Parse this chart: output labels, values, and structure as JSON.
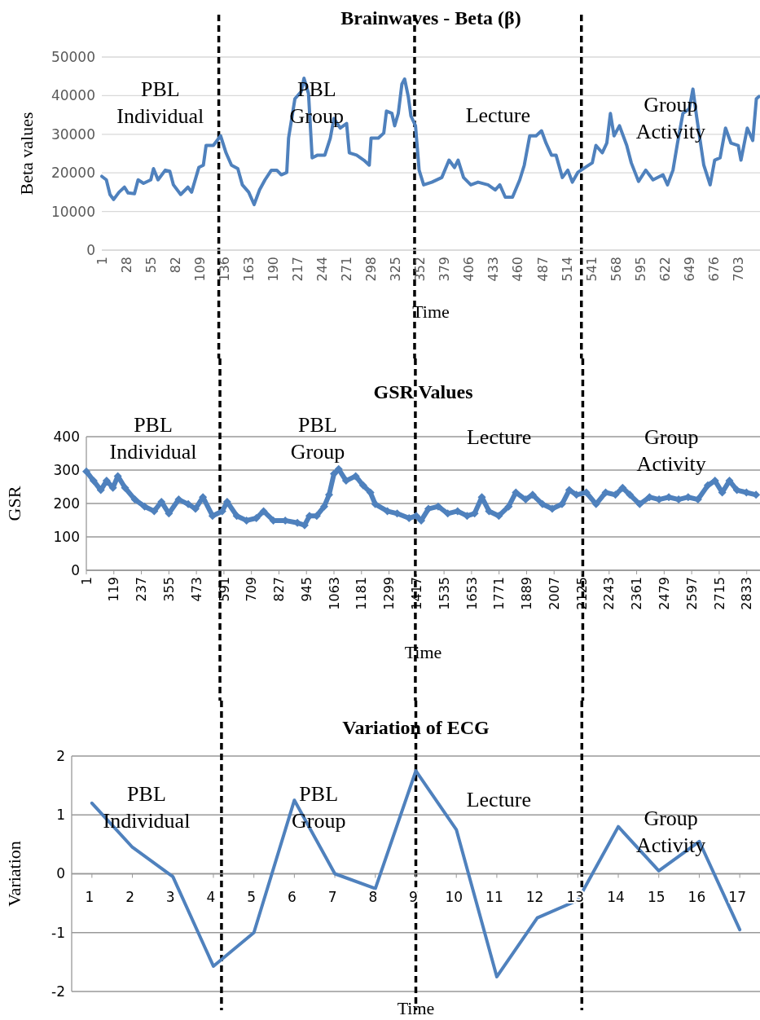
{
  "chart_data": [
    {
      "type": "line",
      "title": "Brainwaves - Beta (β)",
      "xlabel": "Time",
      "ylabel": "Beta values",
      "x": [
        1,
        6,
        10,
        14,
        20,
        26,
        30,
        37,
        41,
        47,
        55,
        58,
        63,
        71,
        76,
        80,
        88,
        96,
        100,
        108,
        113,
        116,
        124,
        132,
        138,
        144,
        151,
        156,
        163,
        169,
        175,
        181,
        188,
        194,
        199,
        205,
        207,
        214,
        221,
        224,
        229,
        233,
        239,
        247,
        253,
        257,
        264,
        271,
        274,
        282,
        290,
        296,
        298,
        306,
        312,
        315,
        321,
        324,
        328,
        332,
        335,
        339,
        342,
        347,
        351,
        356,
        365,
        376,
        384,
        390,
        394,
        400,
        408,
        416,
        427,
        435,
        440,
        446,
        454,
        462,
        467,
        473,
        480,
        486,
        491,
        497,
        502,
        509,
        515,
        520,
        526,
        534,
        542,
        546,
        553,
        558,
        562,
        566,
        572,
        580,
        585,
        593,
        601,
        609,
        620,
        625,
        631,
        636,
        642,
        649,
        653,
        657,
        665,
        672,
        677,
        683,
        689,
        695,
        703,
        706,
        713,
        719,
        723,
        726
      ],
      "series": [
        {
          "color": "#4f81bd",
          "values": [
            19100,
            18200,
            14400,
            13100,
            15000,
            16300,
            14800,
            14600,
            18200,
            17300,
            18200,
            21100,
            18200,
            20700,
            20400,
            16900,
            14400,
            16300,
            15000,
            21400,
            22000,
            27100,
            27100,
            29600,
            25200,
            22000,
            21100,
            16900,
            15000,
            11800,
            15600,
            18200,
            20700,
            20700,
            19500,
            20100,
            29000,
            39200,
            41100,
            44500,
            40500,
            23900,
            24600,
            24600,
            29000,
            34100,
            31600,
            32800,
            25200,
            24600,
            23300,
            22000,
            29000,
            29000,
            30300,
            36000,
            35400,
            32200,
            35400,
            43000,
            44300,
            39800,
            34700,
            32200,
            20700,
            16900,
            17600,
            18800,
            23300,
            21400,
            23300,
            18800,
            16900,
            17600,
            16900,
            15600,
            16900,
            13700,
            13700,
            18200,
            22000,
            29600,
            29600,
            30900,
            27700,
            24600,
            24600,
            18800,
            20700,
            17600,
            20100,
            21400,
            22600,
            27100,
            25200,
            27700,
            35400,
            29600,
            32200,
            27100,
            22600,
            17800,
            20700,
            18200,
            19500,
            16900,
            20700,
            27700,
            35400,
            36600,
            41700,
            34700,
            22000,
            16900,
            23300,
            23900,
            31600,
            27700,
            27100,
            23300,
            31600,
            28400,
            39200,
            39800
          ]
        }
      ],
      "xlim": [
        1,
        727
      ],
      "xticks": [
        1,
        28,
        55,
        82,
        109,
        136,
        163,
        190,
        217,
        244,
        271,
        298,
        325,
        352,
        379,
        406,
        433,
        460,
        487,
        514,
        541,
        568,
        595,
        622,
        649,
        676,
        703
      ],
      "ylim": [
        0,
        50000
      ],
      "yticks": [
        0,
        10000,
        20000,
        30000,
        40000,
        50000
      ],
      "grid": "y",
      "ref_lines": [
        {
          "axis": "x",
          "value": 130,
          "color": "#000000",
          "line_style": "dashed"
        },
        {
          "axis": "x",
          "value": 346,
          "color": "#000000",
          "line_style": "dashed"
        },
        {
          "axis": "x",
          "value": 530,
          "color": "#000000",
          "line_style": "dashed"
        }
      ],
      "annotations": [
        "PBL Individual",
        "PBL Group",
        "Lecture",
        "Group Activity"
      ]
    },
    {
      "type": "line",
      "title": "GSR Values",
      "xlabel": "Time",
      "ylabel": "GSR",
      "marker": "diamond",
      "x": [
        1,
        32,
        63,
        88,
        115,
        136,
        167,
        209,
        251,
        292,
        323,
        355,
        397,
        438,
        469,
        501,
        542,
        584,
        605,
        646,
        688,
        730,
        761,
        803,
        854,
        906,
        937,
        958,
        989,
        1021,
        1042,
        1063,
        1083,
        1115,
        1156,
        1188,
        1219,
        1240,
        1292,
        1334,
        1385,
        1416,
        1437,
        1468,
        1510,
        1551,
        1593,
        1634,
        1666,
        1697,
        1728,
        1770,
        1812,
        1843,
        1885,
        1915,
        1957,
        1999,
        2041,
        2072,
        2103,
        2145,
        2187,
        2228,
        2270,
        2301,
        2332,
        2374,
        2416,
        2457,
        2499,
        2541,
        2582,
        2624,
        2666,
        2697,
        2728,
        2759,
        2791,
        2832,
        2873
      ],
      "series": [
        {
          "color": "#4f81bd",
          "values": [
            296,
            268,
            240,
            268,
            247,
            282,
            247,
            212,
            191,
            177,
            205,
            170,
            212,
            198,
            184,
            219,
            163,
            177,
            205,
            163,
            149,
            156,
            177,
            149,
            149,
            142,
            135,
            163,
            163,
            191,
            226,
            289,
            303,
            268,
            282,
            254,
            233,
            198,
            177,
            170,
            156,
            163,
            149,
            184,
            191,
            170,
            177,
            163,
            170,
            219,
            177,
            163,
            191,
            233,
            212,
            226,
            198,
            184,
            198,
            240,
            226,
            233,
            198,
            233,
            226,
            247,
            226,
            198,
            219,
            212,
            219,
            212,
            219,
            212,
            254,
            268,
            233,
            268,
            240,
            233,
            226
          ]
        }
      ],
      "xlim": [
        1,
        2890
      ],
      "xticks": [
        1,
        119,
        237,
        355,
        473,
        591,
        709,
        827,
        945,
        1063,
        1181,
        1299,
        1417,
        1535,
        1653,
        1771,
        1889,
        2007,
        2125,
        2243,
        2361,
        2479,
        2597,
        2715,
        2833
      ],
      "ylim": [
        0,
        400
      ],
      "yticks": [
        0,
        100,
        200,
        300,
        400
      ],
      "grid": "y",
      "ref_lines": [
        {
          "axis": "x",
          "value": 574,
          "color": "#000000",
          "line_style": "dashed"
        },
        {
          "axis": "x",
          "value": 1412,
          "color": "#000000",
          "line_style": "dashed"
        },
        {
          "axis": "x",
          "value": 2130,
          "color": "#000000",
          "line_style": "dashed"
        }
      ],
      "annotations": [
        "PBL Individual",
        "PBL Group",
        "Lecture",
        "Group Activity"
      ]
    },
    {
      "type": "line",
      "title": "Variation of ECG",
      "xlabel": "Time",
      "ylabel": "Variation",
      "x": [
        1,
        2,
        3,
        4,
        5,
        6,
        7,
        8,
        9,
        10,
        11,
        12,
        13,
        14,
        15,
        16,
        17
      ],
      "series": [
        {
          "color": "#4f81bd",
          "values": [
            1.2,
            0.45,
            -0.05,
            -1.57,
            -1.0,
            1.25,
            0.0,
            -0.25,
            1.75,
            0.75,
            -1.75,
            -0.75,
            -0.45,
            0.8,
            0.05,
            0.55,
            -0.95
          ]
        }
      ],
      "xlim": [
        0.5,
        17.5
      ],
      "xticks": [
        1,
        2,
        3,
        4,
        5,
        6,
        7,
        8,
        9,
        10,
        11,
        12,
        13,
        14,
        15,
        16,
        17
      ],
      "ylim": [
        -2,
        2
      ],
      "yticks": [
        -2,
        -1,
        0,
        1,
        2
      ],
      "grid": "y",
      "ref_lines": [
        {
          "axis": "x",
          "value": 4.2,
          "color": "#000000",
          "line_style": "dashed"
        },
        {
          "axis": "x",
          "value": 9.0,
          "color": "#000000",
          "line_style": "dashed"
        },
        {
          "axis": "x",
          "value": 13.1,
          "color": "#000000",
          "line_style": "dashed"
        }
      ],
      "annotations": [
        "PBL Individual",
        "PBL Group",
        "Lecture",
        "Group Activity"
      ]
    }
  ]
}
